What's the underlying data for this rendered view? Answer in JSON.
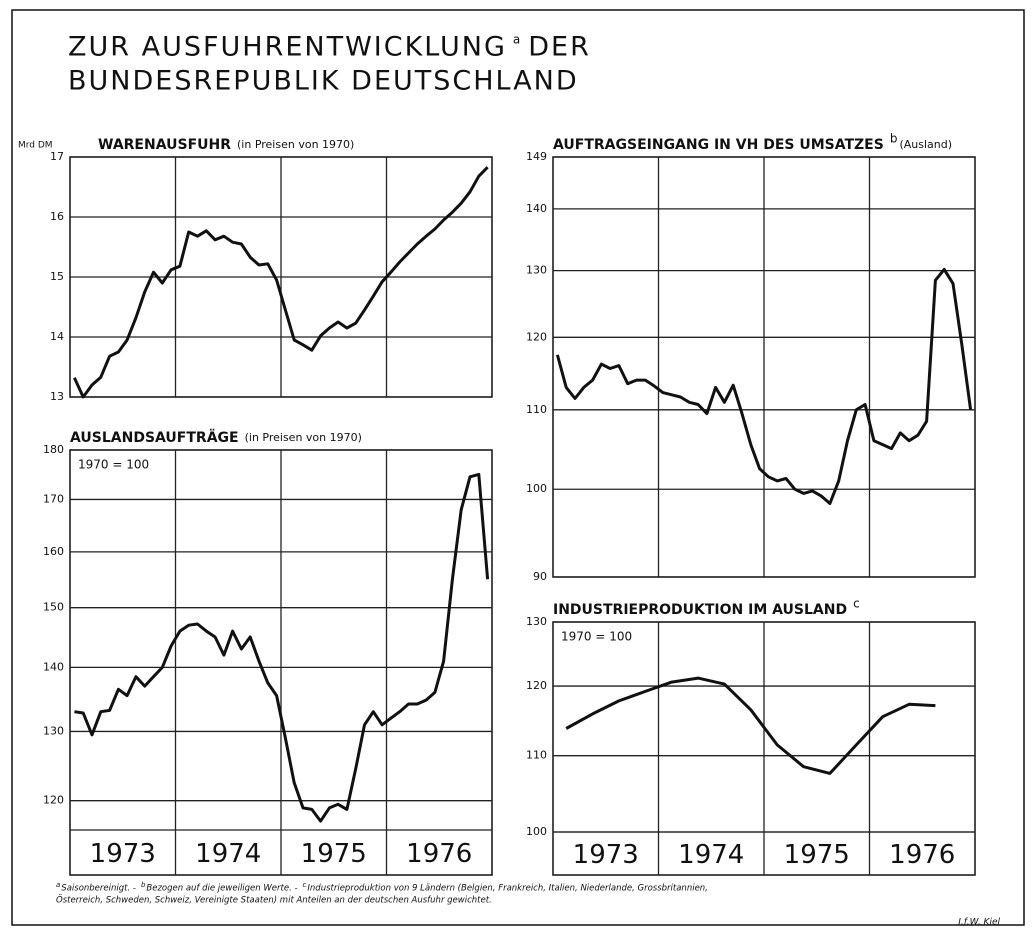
{
  "title_line1": "ZUR AUSFUHRENTWICKLUNG",
  "title_mark": "a",
  "title_line1_end": "DER",
  "title_line2": "BUNDESREPUBLIK DEUTSCHLAND",
  "footnote_line1": [
    {
      "mark": "a",
      "text": "Saisonbereinigt. -"
    },
    {
      "mark": "b",
      "text": "Bezogen auf die jeweiligen Werte. -"
    },
    {
      "mark": "c",
      "text": "Industrieproduktion von 9 Ländern (Belgien, Frankreich, Italien, Niederlande, Grossbritannien,"
    }
  ],
  "footnote_line2": "Österreich, Schweden, Schweiz, Vereinigte Staaten) mit Anteilen an der deutschen Ausfuhr gewichtet.",
  "source": "I.f.W. Kiel",
  "chart_data": [
    {
      "type": "line",
      "title": "WARENAUSFUHR",
      "subtitle": "(in Preisen von 1970)",
      "unit": "Mrd DM",
      "color": "#111111",
      "log": false,
      "grid": true,
      "categories": [
        null,
        null,
        null,
        null,
        null,
        null,
        null,
        null,
        null,
        null,
        null,
        null,
        null,
        null,
        null,
        null,
        null,
        null,
        null,
        null,
        null,
        null,
        null,
        null,
        null,
        null,
        null,
        null,
        null,
        null,
        null,
        null,
        null,
        null,
        null,
        null,
        null,
        null,
        null,
        null,
        null,
        null,
        null,
        null,
        null,
        null,
        null,
        null
      ],
      "values": [
        13.32,
        13.0,
        13.2,
        13.33,
        13.68,
        13.75,
        13.95,
        14.32,
        14.75,
        15.08,
        14.9,
        15.12,
        15.18,
        15.75,
        15.68,
        15.77,
        15.62,
        15.68,
        15.58,
        15.55,
        15.33,
        15.2,
        15.22,
        14.95,
        14.45,
        13.95,
        13.87,
        13.78,
        14.02,
        14.15,
        14.25,
        14.15,
        14.23,
        14.45,
        14.68,
        14.92,
        15.08,
        15.25,
        15.4,
        15.55,
        15.68,
        15.8,
        15.95,
        16.08,
        16.23,
        16.42,
        16.68,
        16.83
      ],
      "ylim": [
        13,
        17
      ],
      "yticks": [
        13,
        14,
        15,
        16,
        17
      ]
    },
    {
      "type": "line",
      "title": "AUFTRAGSEINGANG IN VH DES UMSATZES",
      "title_mark": "b",
      "subtitle": "(Ausland)",
      "color": "#111111",
      "log": true,
      "grid": true,
      "categories": [
        null,
        null,
        null,
        null,
        null,
        null,
        null,
        null,
        null,
        null,
        null,
        null,
        null,
        null,
        null,
        null,
        null,
        null,
        null,
        null,
        null,
        null,
        null,
        null,
        null,
        null,
        null,
        null,
        null,
        null,
        null,
        null,
        null,
        null,
        null,
        null,
        null,
        null,
        null,
        null,
        null,
        null,
        null,
        null,
        null,
        null,
        null,
        null
      ],
      "values": [
        117.5,
        113,
        111.5,
        113,
        114,
        116.2,
        115.6,
        116,
        113.5,
        114,
        114,
        113.2,
        112.3,
        112,
        111.7,
        111,
        110.7,
        109.5,
        113,
        111,
        113.3,
        109.5,
        105.5,
        102.5,
        101.5,
        101,
        101.3,
        100,
        99.5,
        99.8,
        99.2,
        98.3,
        101,
        106,
        110,
        110.7,
        106,
        105.5,
        105,
        107,
        106,
        106.7,
        108.5,
        128.5,
        130.2,
        128,
        119,
        110
      ],
      "ylim": [
        90,
        149
      ],
      "yticks": [
        90,
        100,
        110,
        120,
        130,
        140,
        149
      ]
    },
    {
      "type": "line",
      "title": "AUSLANDSAUFTRÄGE",
      "subtitle": "(in Preisen von 1970)",
      "base_note": "1970 = 100",
      "color": "#111111",
      "log": true,
      "grid": true,
      "xband_labels": [
        "1973",
        "1974",
        "1975",
        "1976"
      ],
      "categories": [
        null,
        null,
        null,
        null,
        null,
        null,
        null,
        null,
        null,
        null,
        null,
        null,
        null,
        null,
        null,
        null,
        null,
        null,
        null,
        null,
        null,
        null,
        null,
        null,
        null,
        null,
        null,
        null,
        null,
        null,
        null,
        null,
        null,
        null,
        null,
        null,
        null,
        null,
        null,
        null,
        null,
        null,
        null,
        null,
        null,
        null,
        null,
        null
      ],
      "values": [
        133,
        132.8,
        129.5,
        133,
        133.2,
        136.5,
        135.5,
        138.5,
        137,
        138.5,
        140,
        143.5,
        146,
        147,
        147.2,
        146,
        145,
        142,
        146,
        143,
        145,
        141,
        137.5,
        135.5,
        129,
        122.5,
        119,
        118.8,
        117.2,
        119,
        119.5,
        118.8,
        124.5,
        131,
        133,
        131,
        132,
        133,
        134.2,
        134.2,
        134.8,
        136,
        141,
        155,
        168,
        174.5,
        175,
        155
      ],
      "ylim": [
        116,
        180
      ],
      "yticks": [
        120,
        130,
        140,
        150,
        160,
        170,
        180
      ]
    },
    {
      "type": "line",
      "title": "INDUSTRIEPRODUKTION IM AUSLAND",
      "title_mark": "c",
      "base_note": "1970 = 100",
      "color": "#111111",
      "log": true,
      "grid": true,
      "xband_labels": [
        "1973",
        "1974",
        "1975",
        "1976"
      ],
      "categories": [
        null,
        null,
        null,
        null,
        null,
        null,
        null,
        null,
        null,
        null,
        null,
        null,
        null,
        null,
        null,
        null
      ],
      "values": [
        113.8,
        115.9,
        117.8,
        119.2,
        120.6,
        121.2,
        120.3,
        116.5,
        111.5,
        108.5,
        107.6,
        111.5,
        115.5,
        117.3,
        117.1,
        null
      ],
      "ylim": [
        100,
        130
      ],
      "yticks": [
        100,
        110,
        120,
        130
      ]
    }
  ]
}
